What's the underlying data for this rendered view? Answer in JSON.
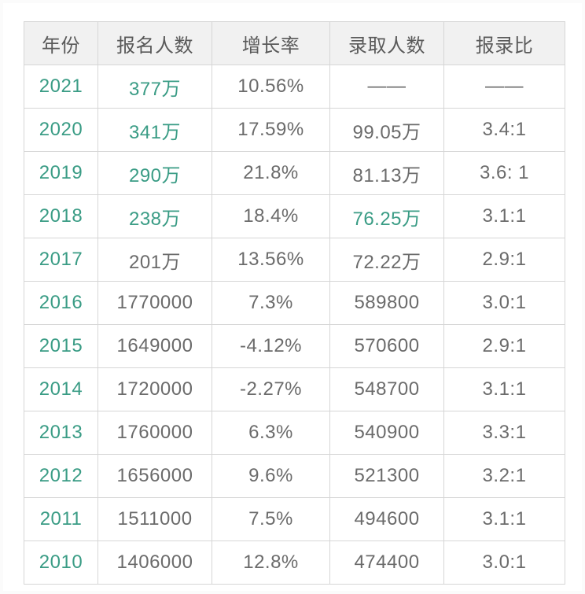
{
  "colors": {
    "accent_green": "#3a9c85",
    "body_text": "#6b6b6b",
    "header_text": "#595959",
    "header_bg": "#f1f1f1",
    "border": "#d6d6d6"
  },
  "table": {
    "columns": [
      {
        "key": "year",
        "label": "年份"
      },
      {
        "key": "applicants",
        "label": "报名人数"
      },
      {
        "key": "growth",
        "label": "增长率"
      },
      {
        "key": "admitted",
        "label": "录取人数"
      },
      {
        "key": "ratio",
        "label": "报录比"
      }
    ],
    "rows": [
      {
        "values": [
          "2021",
          "377万",
          "10.56%",
          "——",
          "——"
        ],
        "green": [
          0,
          1
        ]
      },
      {
        "values": [
          "2020",
          "341万",
          "17.59%",
          "99.05万",
          "3.4:1"
        ],
        "green": [
          0,
          1
        ]
      },
      {
        "values": [
          "2019",
          "290万",
          "21.8%",
          "81.13万",
          "3.6: 1"
        ],
        "green": [
          0,
          1
        ]
      },
      {
        "values": [
          "2018",
          "238万",
          "18.4%",
          "76.25万",
          "3.1:1"
        ],
        "green": [
          0,
          1,
          3
        ]
      },
      {
        "values": [
          "2017",
          "201万",
          "13.56%",
          "72.22万",
          "2.9:1"
        ],
        "green": [
          0
        ]
      },
      {
        "values": [
          "2016",
          "1770000",
          "7.3%",
          "589800",
          "3.0:1"
        ],
        "green": [
          0
        ]
      },
      {
        "values": [
          "2015",
          "1649000",
          "-4.12%",
          "570600",
          "2.9:1"
        ],
        "green": [
          0
        ]
      },
      {
        "values": [
          "2014",
          "1720000",
          "-2.27%",
          "548700",
          "3.1:1"
        ],
        "green": [
          0
        ]
      },
      {
        "values": [
          "2013",
          "1760000",
          "6.3%",
          "540900",
          "3.3:1"
        ],
        "green": [
          0
        ]
      },
      {
        "values": [
          "2012",
          "1656000",
          "9.6%",
          "521300",
          "3.2:1"
        ],
        "green": [
          0
        ]
      },
      {
        "values": [
          "2011",
          "1511000",
          "7.5%",
          "494600",
          "3.1:1"
        ],
        "green": [
          0
        ]
      },
      {
        "values": [
          "2010",
          "1406000",
          "12.8%",
          "474400",
          "3.0:1"
        ],
        "green": [
          0
        ]
      }
    ]
  },
  "chart_data": {
    "type": "table",
    "columns": [
      "年份",
      "报名人数",
      "增长率",
      "录取人数",
      "报录比"
    ],
    "rows": [
      [
        "2021",
        "377万",
        "10.56%",
        "——",
        "——"
      ],
      [
        "2020",
        "341万",
        "17.59%",
        "99.05万",
        "3.4:1"
      ],
      [
        "2019",
        "290万",
        "21.8%",
        "81.13万",
        "3.6: 1"
      ],
      [
        "2018",
        "238万",
        "18.4%",
        "76.25万",
        "3.1:1"
      ],
      [
        "2017",
        "201万",
        "13.56%",
        "72.22万",
        "2.9:1"
      ],
      [
        "2016",
        "1770000",
        "7.3%",
        "589800",
        "3.0:1"
      ],
      [
        "2015",
        "1649000",
        "-4.12%",
        "570600",
        "2.9:1"
      ],
      [
        "2014",
        "1720000",
        "-2.27%",
        "548700",
        "3.1:1"
      ],
      [
        "2013",
        "1760000",
        "6.3%",
        "540900",
        "3.3:1"
      ],
      [
        "2012",
        "1656000",
        "9.6%",
        "521300",
        "3.2:1"
      ],
      [
        "2011",
        "1511000",
        "7.5%",
        "494600",
        "3.1:1"
      ],
      [
        "2010",
        "1406000",
        "12.8%",
        "474400",
        "3.0:1"
      ]
    ]
  }
}
